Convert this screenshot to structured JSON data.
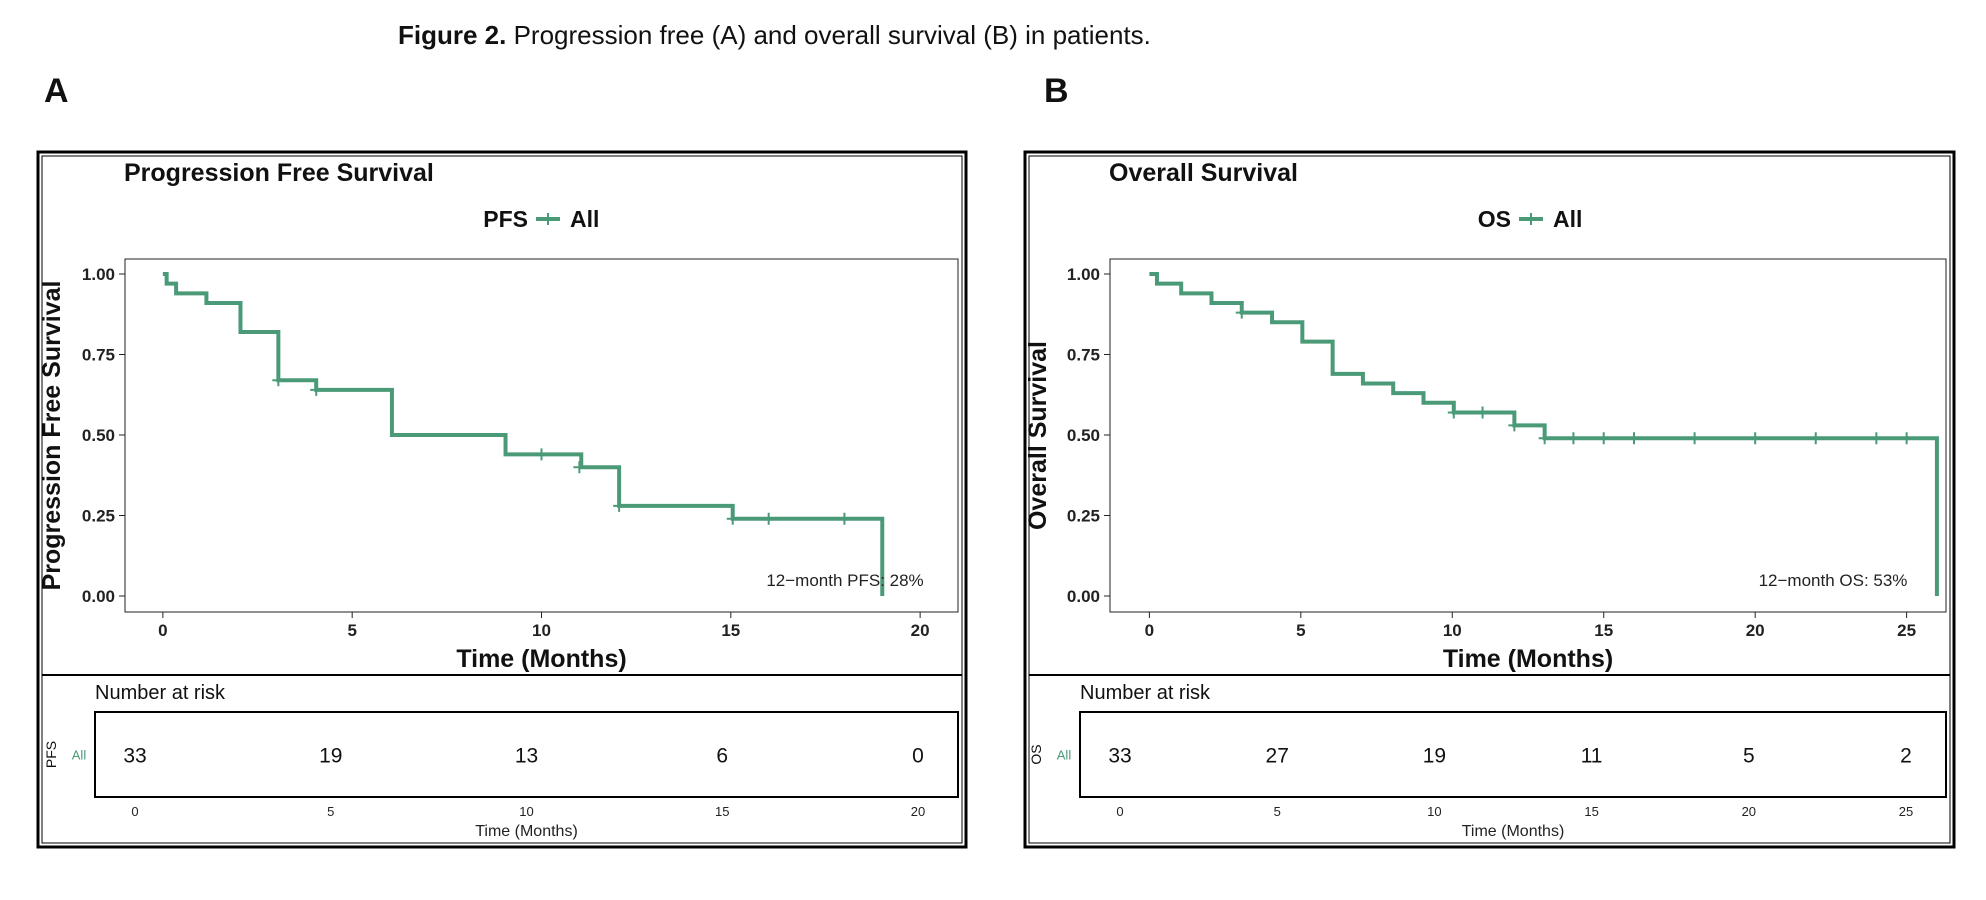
{
  "caption": {
    "label": "Figure 2.",
    "text": " Progression free (A) and overall survival (B) in patients."
  },
  "panels": [
    {
      "letter": "A",
      "title": "Progression Free Survival",
      "legend_label": "PFS",
      "legend_series": "All",
      "ylabel": "Progression Free Survival",
      "xlabel": "Time (Months)",
      "annotation": "12−month PFS: 28%",
      "risk_title": "Number at risk",
      "risk_strata": "PFS",
      "risk_series": "All",
      "risk_xlabel": "Time (Months)"
    },
    {
      "letter": "B",
      "title": "Overall Survival",
      "legend_label": "OS",
      "legend_series": "All",
      "ylabel": "Overall Survival",
      "xlabel": "Time (Months)",
      "annotation": "12−month OS: 53%",
      "risk_title": "Number at risk",
      "risk_strata": "OS",
      "risk_series": "All",
      "risk_xlabel": "Time (Months)"
    }
  ],
  "colors": {
    "curve": "#4a9a78",
    "axis": "#222222",
    "frame": "#000000"
  },
  "chart_data": [
    {
      "type": "line",
      "subtype": "kaplan-meier step",
      "title": "Progression Free Survival",
      "xlabel": "Time (Months)",
      "ylabel": "Progression Free Survival",
      "xlim": [
        -1,
        21
      ],
      "ylim": [
        0,
        1
      ],
      "xticks": [
        0,
        5,
        10,
        15,
        20
      ],
      "yticks": [
        0.0,
        0.25,
        0.5,
        0.75,
        1.0
      ],
      "ytick_labels": [
        "0.00",
        "0.25",
        "0.50",
        "0.75",
        "1.00"
      ],
      "series": [
        {
          "name": "All",
          "steps": [
            [
              0,
              1.0
            ],
            [
              0.1,
              0.97
            ],
            [
              0.3,
              0.97
            ],
            [
              0.35,
              0.94
            ],
            [
              1.1,
              0.94
            ],
            [
              1.15,
              0.91
            ],
            [
              2.0,
              0.91
            ],
            [
              2.05,
              0.82
            ],
            [
              3.0,
              0.82
            ],
            [
              3.05,
              0.67
            ],
            [
              4.0,
              0.67
            ],
            [
              4.05,
              0.64
            ],
            [
              6.0,
              0.64
            ],
            [
              6.05,
              0.5
            ],
            [
              9.0,
              0.5
            ],
            [
              9.05,
              0.44
            ],
            [
              11.0,
              0.44
            ],
            [
              11.05,
              0.4
            ],
            [
              12.0,
              0.4
            ],
            [
              12.05,
              0.28
            ],
            [
              15.0,
              0.28
            ],
            [
              15.05,
              0.24
            ],
            [
              19.0,
              0.24
            ],
            [
              19.0,
              0.0
            ]
          ],
          "censored": [
            [
              3.05,
              0.67
            ],
            [
              4.05,
              0.64
            ],
            [
              10.0,
              0.44
            ],
            [
              11.0,
              0.4
            ],
            [
              12.05,
              0.28
            ],
            [
              15.05,
              0.24
            ],
            [
              16.0,
              0.24
            ],
            [
              18.0,
              0.24
            ]
          ]
        }
      ],
      "risk_table": {
        "times": [
          0,
          5,
          10,
          15,
          20
        ],
        "counts": [
          33,
          19,
          13,
          6,
          0
        ]
      }
    },
    {
      "type": "line",
      "subtype": "kaplan-meier step",
      "title": "Overall Survival",
      "xlabel": "Time (Months)",
      "ylabel": "Overall Survival",
      "xlim": [
        -1.3,
        26.3
      ],
      "ylim": [
        0,
        1
      ],
      "xticks": [
        0,
        5,
        10,
        15,
        20,
        25
      ],
      "yticks": [
        0.0,
        0.25,
        0.5,
        0.75,
        1.0
      ],
      "ytick_labels": [
        "0.00",
        "0.25",
        "0.50",
        "0.75",
        "1.00"
      ],
      "series": [
        {
          "name": "All",
          "steps": [
            [
              0,
              1.0
            ],
            [
              0.2,
              1.0
            ],
            [
              0.25,
              0.97
            ],
            [
              1.0,
              0.97
            ],
            [
              1.05,
              0.94
            ],
            [
              2.0,
              0.94
            ],
            [
              2.05,
              0.91
            ],
            [
              3.0,
              0.91
            ],
            [
              3.05,
              0.88
            ],
            [
              4.0,
              0.88
            ],
            [
              4.05,
              0.85
            ],
            [
              5.0,
              0.85
            ],
            [
              5.05,
              0.79
            ],
            [
              6.0,
              0.79
            ],
            [
              6.05,
              0.69
            ],
            [
              7.0,
              0.69
            ],
            [
              7.05,
              0.66
            ],
            [
              8.0,
              0.66
            ],
            [
              8.05,
              0.63
            ],
            [
              9.0,
              0.63
            ],
            [
              9.05,
              0.6
            ],
            [
              10.0,
              0.6
            ],
            [
              10.05,
              0.57
            ],
            [
              12.0,
              0.57
            ],
            [
              12.05,
              0.53
            ],
            [
              13.0,
              0.53
            ],
            [
              13.05,
              0.49
            ],
            [
              26.0,
              0.49
            ],
            [
              26.0,
              0.0
            ]
          ],
          "censored": [
            [
              3.05,
              0.88
            ],
            [
              10.05,
              0.57
            ],
            [
              11.0,
              0.57
            ],
            [
              12.05,
              0.53
            ],
            [
              13.05,
              0.49
            ],
            [
              14.0,
              0.49
            ],
            [
              15.0,
              0.49
            ],
            [
              16.0,
              0.49
            ],
            [
              18.0,
              0.49
            ],
            [
              20.0,
              0.49
            ],
            [
              22.0,
              0.49
            ],
            [
              24.0,
              0.49
            ],
            [
              25.0,
              0.49
            ]
          ]
        }
      ],
      "risk_table": {
        "times": [
          0,
          5,
          10,
          15,
          20,
          25
        ],
        "counts": [
          33,
          27,
          19,
          11,
          5,
          2
        ]
      }
    }
  ]
}
